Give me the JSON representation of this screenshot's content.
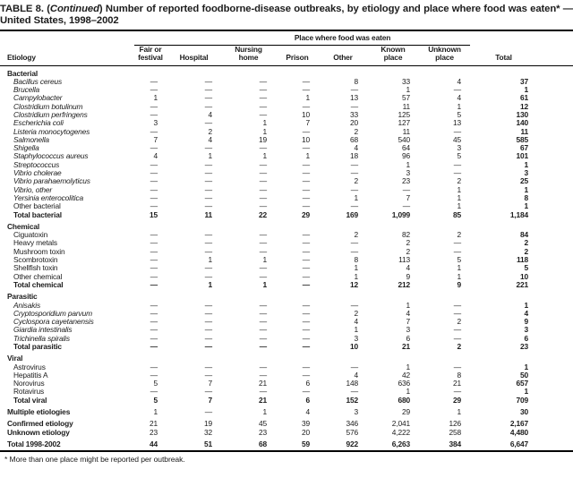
{
  "colors": {
    "text": "#1c1c1c",
    "rule": "#000000",
    "background": "#ffffff"
  },
  "title": {
    "prefix": "TABLE 8. (",
    "continued": "Continued",
    "suffix": ") Number of reported foodborne-disease outbreaks, by etiology and place where food was eaten* —",
    "line2": "United States, 1998–2002"
  },
  "table": {
    "spanner": "Place where food was eaten",
    "etiology_header": "Etiology",
    "columns": [
      "Fair or\nfestival",
      "Hospital",
      "Nursing\nhome",
      "Prison",
      "Other",
      "Known\nplace",
      "Unknown\nplace",
      "Total"
    ],
    "sections": [
      {
        "header": "Bacterial",
        "rows": [
          {
            "label": "Bacillus cereus",
            "italic": true,
            "values": [
              "—",
              "—",
              "—",
              "—",
              "8",
              "33",
              "4",
              "37"
            ]
          },
          {
            "label": "Brucella",
            "italic": true,
            "values": [
              "—",
              "—",
              "—",
              "—",
              "—",
              "1",
              "—",
              "1"
            ]
          },
          {
            "label": "Campylobacter",
            "italic": true,
            "values": [
              "1",
              "—",
              "—",
              "1",
              "13",
              "57",
              "4",
              "61"
            ]
          },
          {
            "label": "Clostridium botulinum",
            "italic": true,
            "values": [
              "—",
              "—",
              "—",
              "—",
              "—",
              "11",
              "1",
              "12"
            ]
          },
          {
            "label": "Clostridium perfringens",
            "italic": true,
            "values": [
              "—",
              "4",
              "—",
              "10",
              "33",
              "125",
              "5",
              "130"
            ]
          },
          {
            "label": "Escherichia coli",
            "italic": true,
            "values": [
              "3",
              "—",
              "1",
              "7",
              "20",
              "127",
              "13",
              "140"
            ]
          },
          {
            "label": "Listeria monocytogenes",
            "italic": true,
            "values": [
              "—",
              "2",
              "1",
              "—",
              "2",
              "11",
              "—",
              "11"
            ]
          },
          {
            "label": "Salmonella",
            "italic": true,
            "values": [
              "7",
              "4",
              "19",
              "10",
              "68",
              "540",
              "45",
              "585"
            ]
          },
          {
            "label": "Shigella",
            "italic": true,
            "values": [
              "—",
              "—",
              "—",
              "—",
              "4",
              "64",
              "3",
              "67"
            ]
          },
          {
            "label": "Staphylococcus aureus",
            "italic": true,
            "values": [
              "4",
              "1",
              "1",
              "1",
              "18",
              "96",
              "5",
              "101"
            ]
          },
          {
            "label": "Streptococcus",
            "italic": true,
            "values": [
              "—",
              "—",
              "—",
              "—",
              "—",
              "1",
              "—",
              "1"
            ]
          },
          {
            "label": "Vibrio cholerae",
            "italic": true,
            "values": [
              "—",
              "—",
              "—",
              "—",
              "—",
              "3",
              "—",
              "3"
            ]
          },
          {
            "label": "Vibrio parahaemolyticus",
            "italic": true,
            "values": [
              "—",
              "—",
              "—",
              "—",
              "2",
              "23",
              "2",
              "25"
            ]
          },
          {
            "label": "Vibrio, other",
            "italic": true,
            "values": [
              "—",
              "—",
              "—",
              "—",
              "—",
              "—",
              "1",
              "1"
            ]
          },
          {
            "label": "Yersinia enterocolitica",
            "italic": true,
            "values": [
              "—",
              "—",
              "—",
              "—",
              "1",
              "7",
              "1",
              "8"
            ]
          },
          {
            "label": "Other bacterial",
            "values": [
              "—",
              "—",
              "—",
              "—",
              "—",
              "—",
              "1",
              "1"
            ]
          },
          {
            "label": "Total bacterial",
            "bold": true,
            "values": [
              "15",
              "11",
              "22",
              "29",
              "169",
              "1,099",
              "85",
              "1,184"
            ]
          }
        ]
      },
      {
        "header": "Chemical",
        "rows": [
          {
            "label": "Ciguatoxin",
            "values": [
              "—",
              "—",
              "—",
              "—",
              "2",
              "82",
              "2",
              "84"
            ]
          },
          {
            "label": "Heavy metals",
            "values": [
              "—",
              "—",
              "—",
              "—",
              "—",
              "2",
              "—",
              "2"
            ]
          },
          {
            "label": "Mushroom toxin",
            "values": [
              "—",
              "—",
              "—",
              "—",
              "—",
              "2",
              "—",
              "2"
            ]
          },
          {
            "label": "Scombrotoxin",
            "values": [
              "—",
              "1",
              "1",
              "—",
              "8",
              "113",
              "5",
              "118"
            ]
          },
          {
            "label": "Shellfish toxin",
            "values": [
              "—",
              "—",
              "—",
              "—",
              "1",
              "4",
              "1",
              "5"
            ]
          },
          {
            "label": "Other chemical",
            "values": [
              "—",
              "—",
              "—",
              "—",
              "1",
              "9",
              "1",
              "10"
            ]
          },
          {
            "label": "Total chemical",
            "bold": true,
            "values": [
              "—",
              "1",
              "1",
              "—",
              "12",
              "212",
              "9",
              "221"
            ]
          }
        ]
      },
      {
        "header": "Parasitic",
        "rows": [
          {
            "label": "Anisakis",
            "italic": true,
            "values": [
              "—",
              "—",
              "—",
              "—",
              "—",
              "1",
              "—",
              "1"
            ]
          },
          {
            "label": "Cryptosporidium parvum",
            "italic": true,
            "values": [
              "—",
              "—",
              "—",
              "—",
              "2",
              "4",
              "—",
              "4"
            ]
          },
          {
            "label": "Cyclospora cayetanensis",
            "italic": true,
            "values": [
              "—",
              "—",
              "—",
              "—",
              "4",
              "7",
              "2",
              "9"
            ]
          },
          {
            "label": "Giardia intestinalis",
            "italic": true,
            "values": [
              "—",
              "—",
              "—",
              "—",
              "1",
              "3",
              "—",
              "3"
            ]
          },
          {
            "label": "Trichinella spiralis",
            "italic": true,
            "values": [
              "—",
              "—",
              "—",
              "—",
              "3",
              "6",
              "—",
              "6"
            ]
          },
          {
            "label": "Total parasitic",
            "bold": true,
            "values": [
              "—",
              "—",
              "—",
              "—",
              "10",
              "21",
              "2",
              "23"
            ]
          }
        ]
      },
      {
        "header": "Viral",
        "rows": [
          {
            "label": "Astrovirus",
            "values": [
              "—",
              "—",
              "—",
              "—",
              "—",
              "1",
              "—",
              "1"
            ]
          },
          {
            "label": "Hepatitis A",
            "values": [
              "—",
              "—",
              "—",
              "—",
              "4",
              "42",
              "8",
              "50"
            ]
          },
          {
            "label": "Norovirus",
            "values": [
              "5",
              "7",
              "21",
              "6",
              "148",
              "636",
              "21",
              "657"
            ]
          },
          {
            "label": "Rotavirus",
            "values": [
              "—",
              "—",
              "—",
              "—",
              "—",
              "1",
              "—",
              "1"
            ]
          },
          {
            "label": "Total viral",
            "bold": true,
            "values": [
              "5",
              "7",
              "21",
              "6",
              "152",
              "680",
              "29",
              "709"
            ]
          }
        ]
      },
      {
        "header": null,
        "rows": [
          {
            "label": "Multiple etiologies",
            "standalone": true,
            "gap": true,
            "values": [
              "1",
              "—",
              "1",
              "4",
              "3",
              "29",
              "1",
              "30"
            ]
          }
        ]
      },
      {
        "header": null,
        "rows": [
          {
            "label": "Confirmed etiology",
            "standalone": true,
            "gap": true,
            "values": [
              "21",
              "19",
              "45",
              "39",
              "346",
              "2,041",
              "126",
              "2,167"
            ]
          },
          {
            "label": "Unknown etiology",
            "standalone": true,
            "values": [
              "23",
              "32",
              "23",
              "20",
              "576",
              "4,222",
              "258",
              "4,480"
            ]
          }
        ]
      },
      {
        "header": null,
        "rows": [
          {
            "label": "Total 1998-2002",
            "standalone": true,
            "bold": true,
            "gap": true,
            "values": [
              "44",
              "51",
              "68",
              "59",
              "922",
              "6,263",
              "384",
              "6,647"
            ]
          }
        ]
      }
    ]
  },
  "footnote": "* More than one place might be reported per outbreak."
}
